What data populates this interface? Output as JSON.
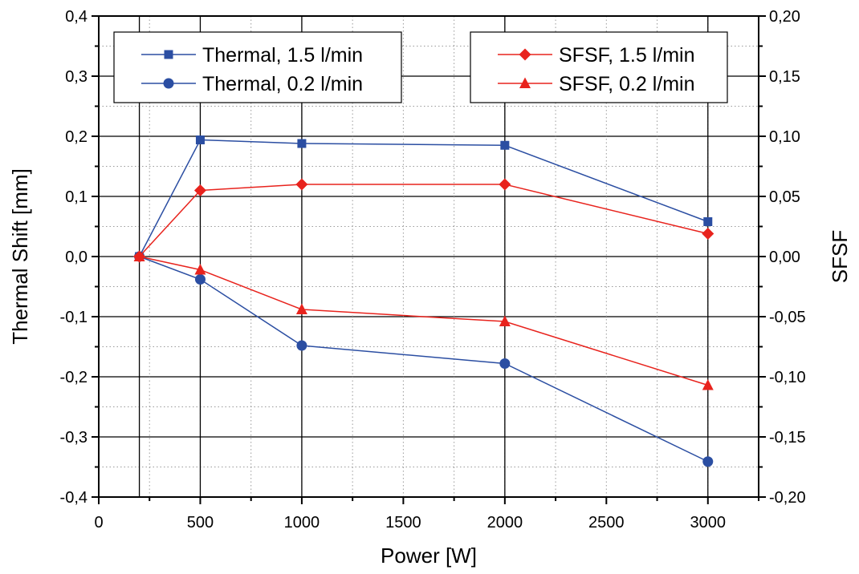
{
  "chart_data": {
    "type": "line",
    "title": "",
    "xlabel": "Power [W]",
    "ylabel": "Thermal Shift [mm]",
    "y2label": "SFSF",
    "xlim": [
      0,
      3250
    ],
    "ylim": [
      -0.4,
      0.4
    ],
    "y2lim": [
      -0.2,
      0.2
    ],
    "x_ticks": [
      "0",
      "500",
      "1000",
      "1500",
      "2000",
      "2500",
      "3000"
    ],
    "y_ticks": [
      "-0,4",
      "-0,3",
      "-0,2",
      "-0,1",
      "0,0",
      "0,1",
      "0,2",
      "0,3",
      "0,4"
    ],
    "y2_ticks": [
      "-0,20",
      "-0,15",
      "-0,10",
      "-0,05",
      "0,00",
      "0,05",
      "0,10",
      "0,15",
      "0,20"
    ],
    "grid": true,
    "series": [
      {
        "name": "Thermal, 1.5 l/min",
        "axis": "left",
        "color": "#2b4ea2",
        "marker": "square",
        "x": [
          200,
          500,
          1000,
          2000,
          3000
        ],
        "y": [
          0.0,
          0.194,
          0.188,
          0.185,
          0.058
        ]
      },
      {
        "name": "Thermal, 0.2 l/min",
        "axis": "left",
        "color": "#2b4ea2",
        "marker": "circle",
        "x": [
          200,
          500,
          1000,
          2000,
          3000
        ],
        "y": [
          0.0,
          -0.038,
          -0.148,
          -0.178,
          -0.341
        ]
      },
      {
        "name": "SFSF, 1.5 l/min",
        "axis": "right",
        "color": "#e8231d",
        "marker": "diamond",
        "x": [
          200,
          500,
          1000,
          2000,
          3000
        ],
        "y": [
          0.0,
          0.055,
          0.06,
          0.06,
          0.019
        ]
      },
      {
        "name": "SFSF, 0.2 l/min",
        "axis": "right",
        "color": "#e8231d",
        "marker": "triangle",
        "x": [
          200,
          500,
          1000,
          2000,
          3000
        ],
        "y": [
          0.0,
          -0.011,
          -0.044,
          -0.054,
          -0.107
        ]
      }
    ],
    "legends": [
      {
        "position": "top-left",
        "entries": [
          0,
          1
        ]
      },
      {
        "position": "top-right",
        "entries": [
          2,
          3
        ]
      }
    ]
  }
}
